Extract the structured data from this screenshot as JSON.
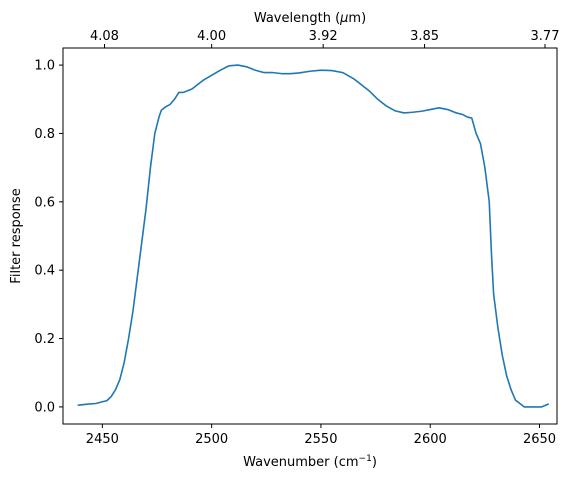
{
  "chart_data": {
    "type": "line",
    "title": "",
    "xlabel": "Wavenumber (cm$^{-1}$)",
    "xlabel_parts": {
      "base": "Wavenumber (cm",
      "sup": "−1",
      "close": ")"
    },
    "ylabel": "Filter response",
    "top_xlabel": "Wavelength ($\\mu$m)",
    "top_xlabel_parts": {
      "before": "Wavelength (",
      "mu": "μ",
      "after": "m)"
    },
    "xlim": [
      2432,
      2658
    ],
    "ylim": [
      -0.05,
      1.05
    ],
    "x_ticks": [
      2450,
      2500,
      2550,
      2600,
      2650
    ],
    "x_tick_labels": [
      "2450",
      "2500",
      "2550",
      "2600",
      "2650"
    ],
    "y_ticks": [
      0.0,
      0.2,
      0.4,
      0.6,
      0.8,
      1.0
    ],
    "y_tick_labels": [
      "0.0",
      "0.2",
      "0.4",
      "0.6",
      "0.8",
      "1.0"
    ],
    "top_ticks_micron": [
      4.08,
      4.0,
      3.92,
      3.85,
      3.77
    ],
    "top_tick_labels": [
      "4.08",
      "4.00",
      "3.92",
      "3.85",
      "3.77"
    ],
    "grid": false,
    "line_color": "#1f77b4",
    "series": [
      {
        "x": [
          2439,
          2443,
          2447,
          2450,
          2452,
          2454,
          2456,
          2458,
          2460,
          2462,
          2464,
          2466,
          2468,
          2470,
          2472,
          2474,
          2476,
          2477,
          2479,
          2481,
          2483,
          2485,
          2487,
          2489,
          2491,
          2493,
          2496,
          2500,
          2504,
          2508,
          2512,
          2516,
          2520,
          2524,
          2528,
          2532,
          2536,
          2540,
          2545,
          2550,
          2555,
          2560,
          2565,
          2568,
          2572,
          2576,
          2580,
          2584,
          2588,
          2592,
          2596,
          2600,
          2604,
          2608,
          2612,
          2615,
          2617,
          2619,
          2621,
          2623,
          2625,
          2627,
          2628,
          2629,
          2631,
          2633,
          2635,
          2637,
          2639,
          2641,
          2643,
          2645,
          2647,
          2649,
          2651,
          2654
        ],
        "y": [
          0.005,
          0.008,
          0.01,
          0.015,
          0.018,
          0.03,
          0.05,
          0.08,
          0.13,
          0.2,
          0.28,
          0.38,
          0.48,
          0.58,
          0.7,
          0.8,
          0.85,
          0.868,
          0.878,
          0.885,
          0.9,
          0.92,
          0.92,
          0.925,
          0.93,
          0.94,
          0.955,
          0.97,
          0.985,
          0.998,
          1.0,
          0.995,
          0.985,
          0.978,
          0.978,
          0.975,
          0.975,
          0.977,
          0.982,
          0.985,
          0.984,
          0.978,
          0.96,
          0.945,
          0.925,
          0.9,
          0.88,
          0.866,
          0.86,
          0.862,
          0.865,
          0.87,
          0.875,
          0.87,
          0.86,
          0.855,
          0.848,
          0.845,
          0.8,
          0.77,
          0.7,
          0.6,
          0.45,
          0.33,
          0.23,
          0.15,
          0.09,
          0.05,
          0.02,
          0.01,
          0.0,
          0.0,
          0.0,
          0.0,
          0.0,
          0.008
        ]
      }
    ]
  }
}
